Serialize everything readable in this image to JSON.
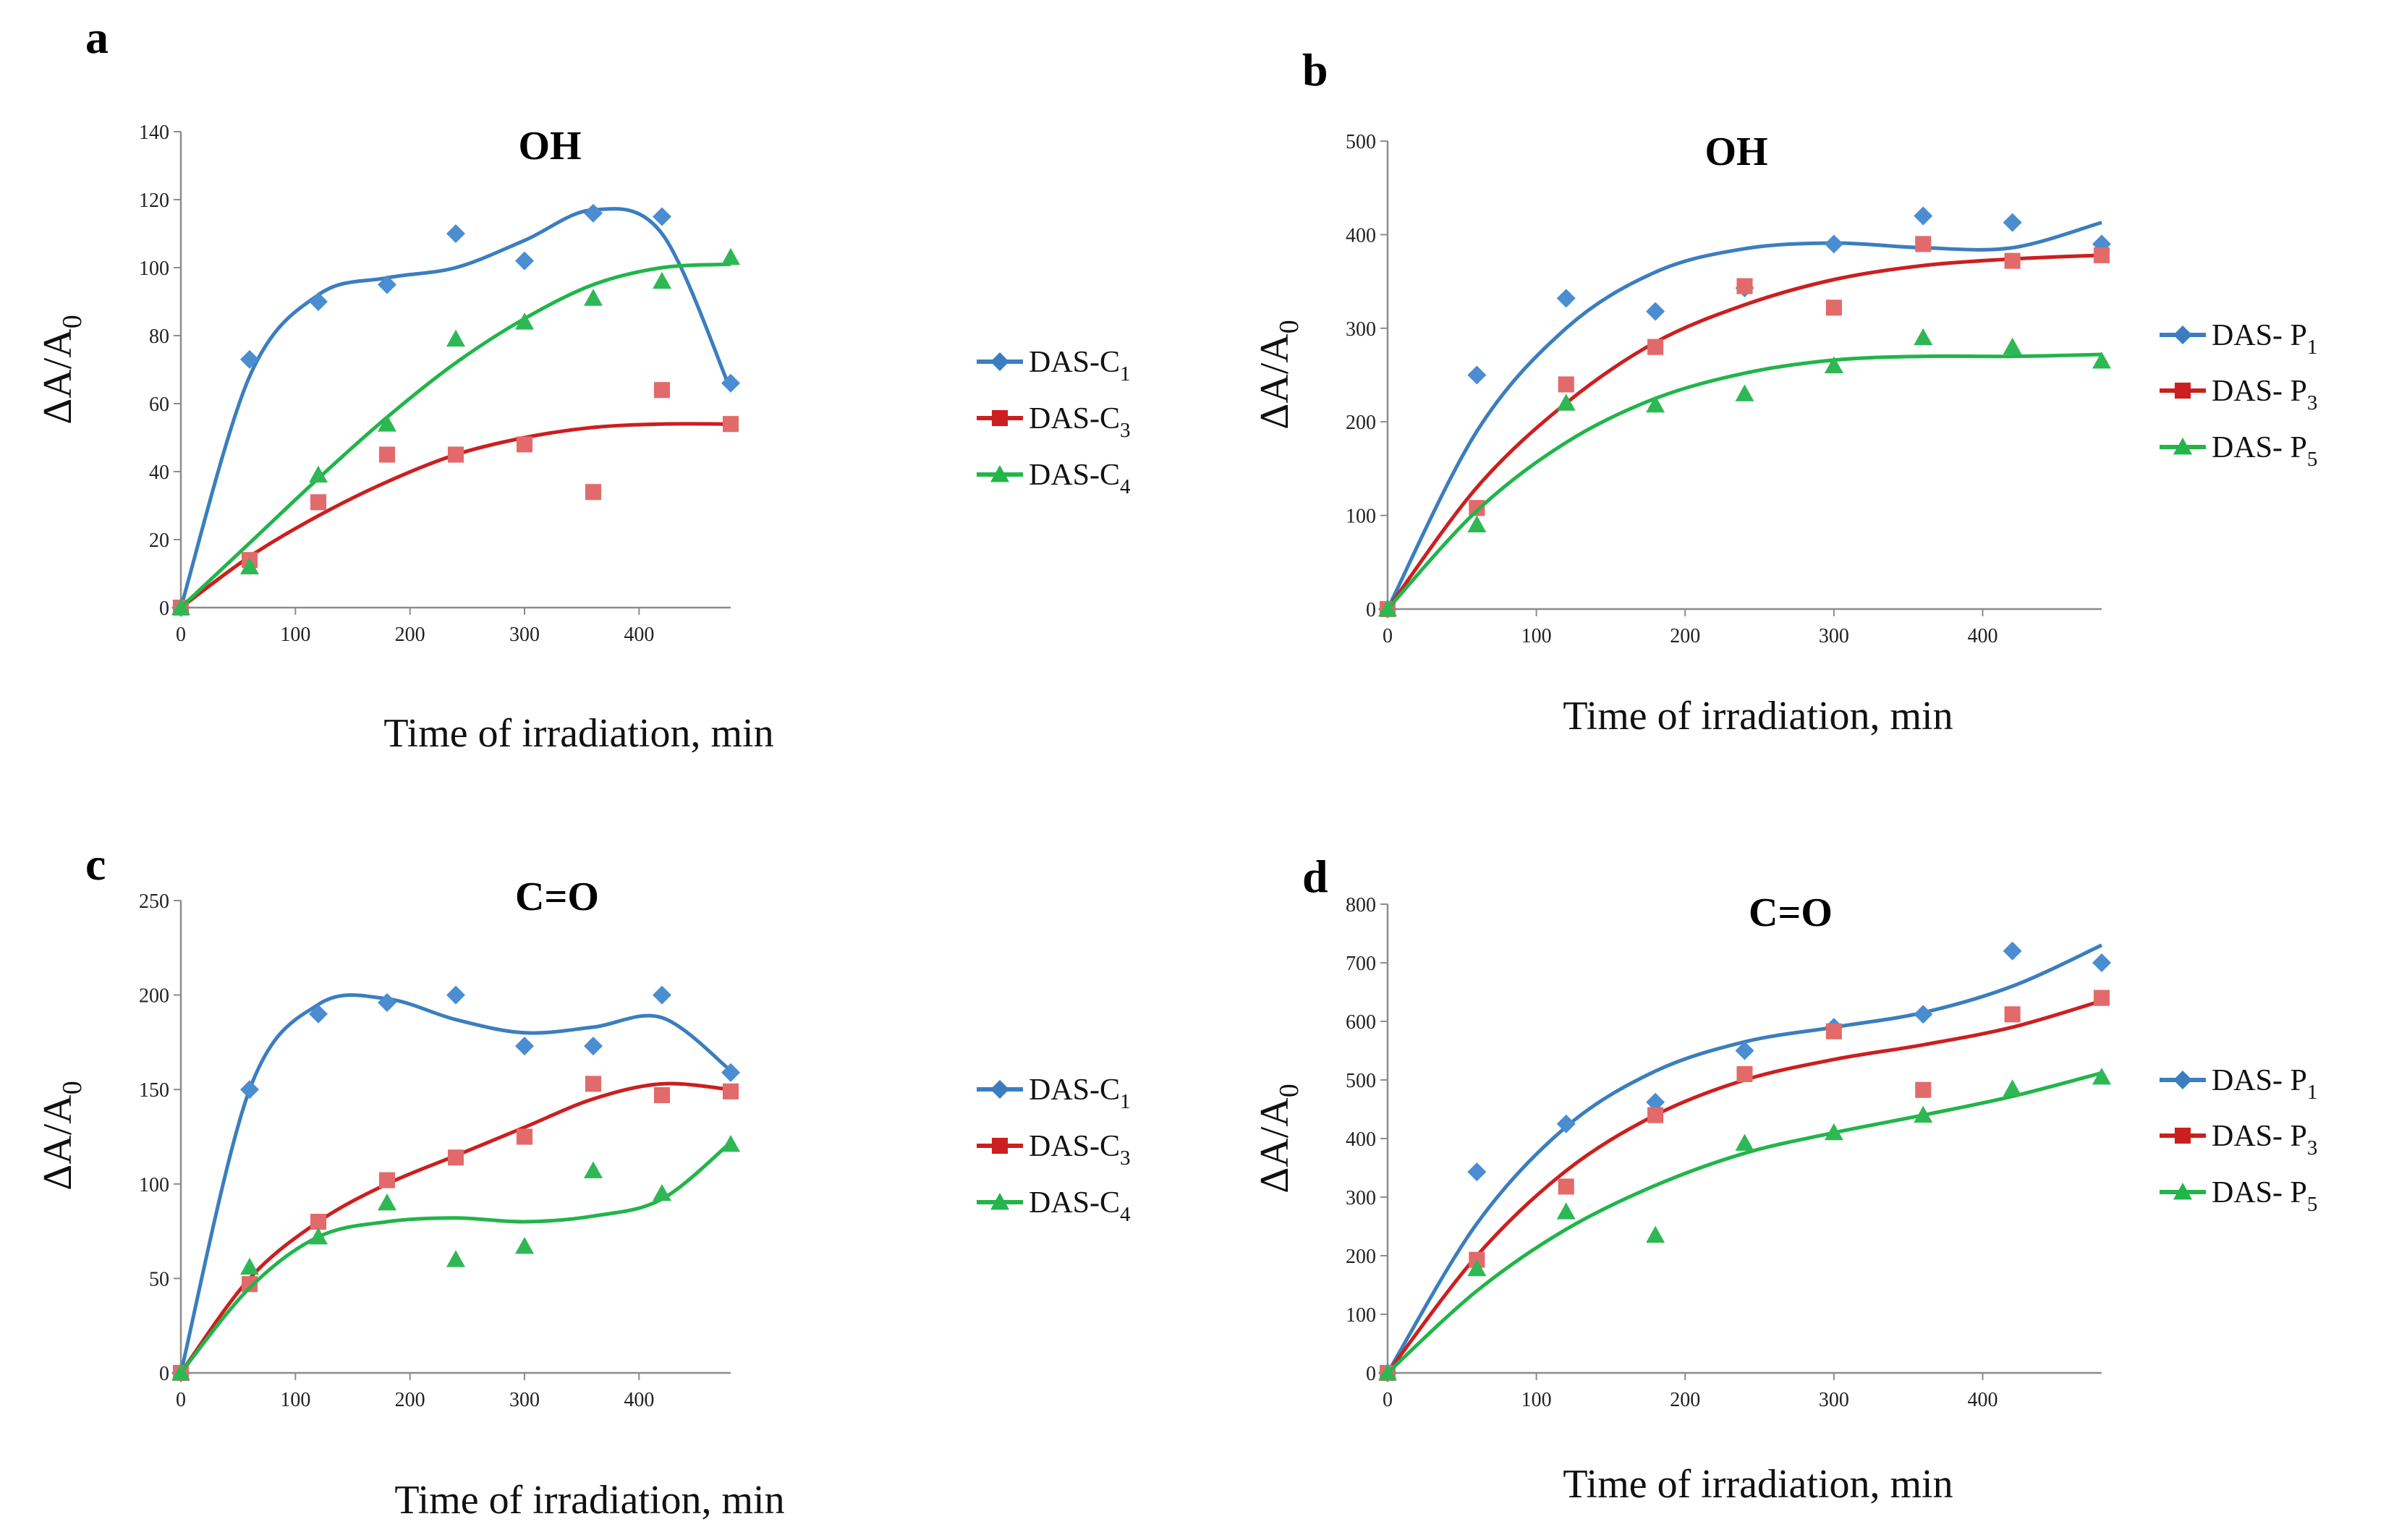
{
  "colors": {
    "blue": "#3a7ebf",
    "blue_marker": "#4a8dd0",
    "red": "#cc1f1f",
    "red_marker": "#e36a6a",
    "green": "#21b54a",
    "green_marker": "#2eb854",
    "axis": "#8c8c8c"
  },
  "chart_data": [
    {
      "type": "scatter",
      "panel_label": "a",
      "title": "OH",
      "xlabel": "Time of irradiation, min",
      "ylabel": {
        "main": "ΔA/A",
        "sub": "0"
      },
      "xlim": [
        0,
        480
      ],
      "ylim": [
        0,
        140
      ],
      "xticks": [
        0,
        100,
        200,
        300,
        400
      ],
      "yticks": [
        0,
        20,
        40,
        60,
        80,
        100,
        120,
        140
      ],
      "legend_position": "right",
      "series": [
        {
          "name": "DAS-C1",
          "prefix": "DAS-C",
          "sub": "1",
          "color": "blue",
          "marker": "diamond",
          "x": [
            0,
            60,
            120,
            180,
            240,
            300,
            360,
            420,
            480
          ],
          "y": [
            0,
            73,
            90,
            95,
            110,
            102,
            116,
            115,
            66
          ],
          "fit": [
            0,
            68,
            92,
            97,
            100,
            108,
            117,
            110,
            64
          ]
        },
        {
          "name": "DAS-C3",
          "prefix": "DAS-C",
          "sub": "3",
          "color": "red",
          "marker": "square",
          "x": [
            0,
            60,
            120,
            180,
            240,
            300,
            360,
            420,
            480
          ],
          "y": [
            0,
            14,
            31,
            45,
            45,
            48,
            34,
            64,
            54
          ],
          "fit": [
            0,
            15,
            27,
            37,
            45,
            50,
            53,
            54,
            54
          ]
        },
        {
          "name": "DAS-C4",
          "prefix": "DAS-C",
          "sub": "4",
          "color": "green",
          "marker": "triangle",
          "x": [
            0,
            60,
            120,
            180,
            240,
            300,
            360,
            420,
            480
          ],
          "y": [
            0,
            12,
            39,
            54,
            79,
            84,
            91,
            96,
            103
          ],
          "fit": [
            0,
            19,
            38,
            56,
            72,
            85,
            95,
            100,
            101
          ]
        }
      ]
    },
    {
      "type": "scatter",
      "panel_label": "b",
      "title": "OH",
      "xlabel": "Time of irradiation, min",
      "ylabel": {
        "main": "ΔA/A",
        "sub": "0"
      },
      "xlim": [
        0,
        480
      ],
      "ylim": [
        0,
        500
      ],
      "xticks": [
        0,
        100,
        200,
        300,
        400
      ],
      "yticks": [
        0,
        100,
        200,
        300,
        400,
        500
      ],
      "legend_position": "right",
      "series": [
        {
          "name": "DAS-P1",
          "prefix": "DAS- P",
          "sub": "1",
          "color": "blue",
          "marker": "diamond",
          "x": [
            0,
            60,
            120,
            180,
            240,
            300,
            360,
            420,
            480
          ],
          "y": [
            0,
            250,
            332,
            318,
            343,
            390,
            420,
            413,
            390
          ],
          "fit": [
            0,
            190,
            300,
            360,
            385,
            391,
            386,
            386,
            413
          ]
        },
        {
          "name": "DAS-P3",
          "prefix": "DAS- P",
          "sub": "3",
          "color": "red",
          "marker": "square",
          "x": [
            0,
            60,
            120,
            180,
            240,
            300,
            360,
            420,
            480
          ],
          "y": [
            0,
            108,
            240,
            280,
            345,
            322,
            390,
            372,
            378
          ],
          "fit": [
            0,
            130,
            220,
            285,
            325,
            352,
            367,
            374,
            378
          ]
        },
        {
          "name": "DAS-P5",
          "prefix": "DAS- P",
          "sub": "5",
          "color": "green",
          "marker": "triangle",
          "x": [
            0,
            60,
            120,
            180,
            240,
            300,
            360,
            420,
            480
          ],
          "y": [
            0,
            90,
            220,
            218,
            230,
            260,
            290,
            280,
            265
          ],
          "fit": [
            0,
            105,
            178,
            225,
            252,
            266,
            270,
            270,
            272
          ]
        }
      ]
    },
    {
      "type": "scatter",
      "panel_label": "c",
      "title": "C=O",
      "xlabel": "Time of irradiation, min",
      "ylabel": {
        "main": "ΔA/A",
        "sub": "0"
      },
      "xlim": [
        0,
        480
      ],
      "ylim": [
        0,
        250
      ],
      "xticks": [
        0,
        100,
        200,
        300,
        400
      ],
      "yticks": [
        0,
        50,
        100,
        150,
        200,
        250
      ],
      "legend_position": "right",
      "series": [
        {
          "name": "DAS-C1",
          "prefix": "DAS-C",
          "sub": "1",
          "color": "blue",
          "marker": "diamond",
          "x": [
            0,
            60,
            120,
            180,
            240,
            300,
            360,
            420,
            480
          ],
          "y": [
            0,
            150,
            190,
            196,
            200,
            173,
            173,
            200,
            159
          ],
          "fit": [
            0,
            150,
            195,
            198,
            187,
            180,
            183,
            188,
            160
          ]
        },
        {
          "name": "DAS-C3",
          "prefix": "DAS-C",
          "sub": "3",
          "color": "red",
          "marker": "square",
          "x": [
            0,
            60,
            120,
            180,
            240,
            300,
            360,
            420,
            480
          ],
          "y": [
            0,
            47,
            80,
            102,
            114,
            125,
            153,
            147,
            149
          ],
          "fit": [
            0,
            50,
            80,
            100,
            115,
            130,
            145,
            153,
            150
          ]
        },
        {
          "name": "DAS-C4",
          "prefix": "DAS-C",
          "sub": "4",
          "color": "green",
          "marker": "triangle",
          "x": [
            0,
            60,
            120,
            180,
            240,
            300,
            360,
            420,
            480
          ],
          "y": [
            0,
            56,
            72,
            90,
            60,
            67,
            107,
            95,
            121
          ],
          "fit": [
            0,
            45,
            72,
            80,
            82,
            80,
            83,
            92,
            122
          ]
        }
      ]
    },
    {
      "type": "scatter",
      "panel_label": "d",
      "title": "C=O",
      "xlabel": "Time of irradiation, min",
      "ylabel": {
        "main": "ΔA/A",
        "sub": "0"
      },
      "xlim": [
        0,
        480
      ],
      "ylim": [
        0,
        800
      ],
      "xticks": [
        0,
        100,
        200,
        300,
        400
      ],
      "yticks": [
        0,
        100,
        200,
        300,
        400,
        500,
        600,
        700,
        800
      ],
      "legend_position": "right",
      "series": [
        {
          "name": "DAS-P1",
          "prefix": "DAS- P",
          "sub": "1",
          "color": "blue",
          "marker": "diamond",
          "x": [
            0,
            60,
            120,
            180,
            240,
            300,
            360,
            420,
            480
          ],
          "y": [
            0,
            343,
            425,
            462,
            550,
            590,
            612,
            720,
            700
          ],
          "fit": [
            0,
            255,
            420,
            515,
            565,
            590,
            615,
            660,
            730
          ]
        },
        {
          "name": "DAS-P3",
          "prefix": "DAS- P",
          "sub": "3",
          "color": "red",
          "marker": "square",
          "x": [
            0,
            60,
            120,
            180,
            240,
            300,
            360,
            420,
            480
          ],
          "y": [
            0,
            193,
            318,
            440,
            510,
            583,
            483,
            612,
            640
          ],
          "fit": [
            0,
            200,
            345,
            440,
            500,
            535,
            560,
            590,
            635
          ]
        },
        {
          "name": "DAS-P5",
          "prefix": "DAS- P",
          "sub": "5",
          "color": "green",
          "marker": "triangle",
          "x": [
            0,
            60,
            120,
            180,
            240,
            300,
            360,
            420,
            480
          ],
          "y": [
            0,
            178,
            275,
            235,
            392,
            410,
            440,
            485,
            505
          ],
          "fit": [
            0,
            140,
            245,
            320,
            375,
            410,
            440,
            472,
            512
          ]
        }
      ]
    }
  ]
}
